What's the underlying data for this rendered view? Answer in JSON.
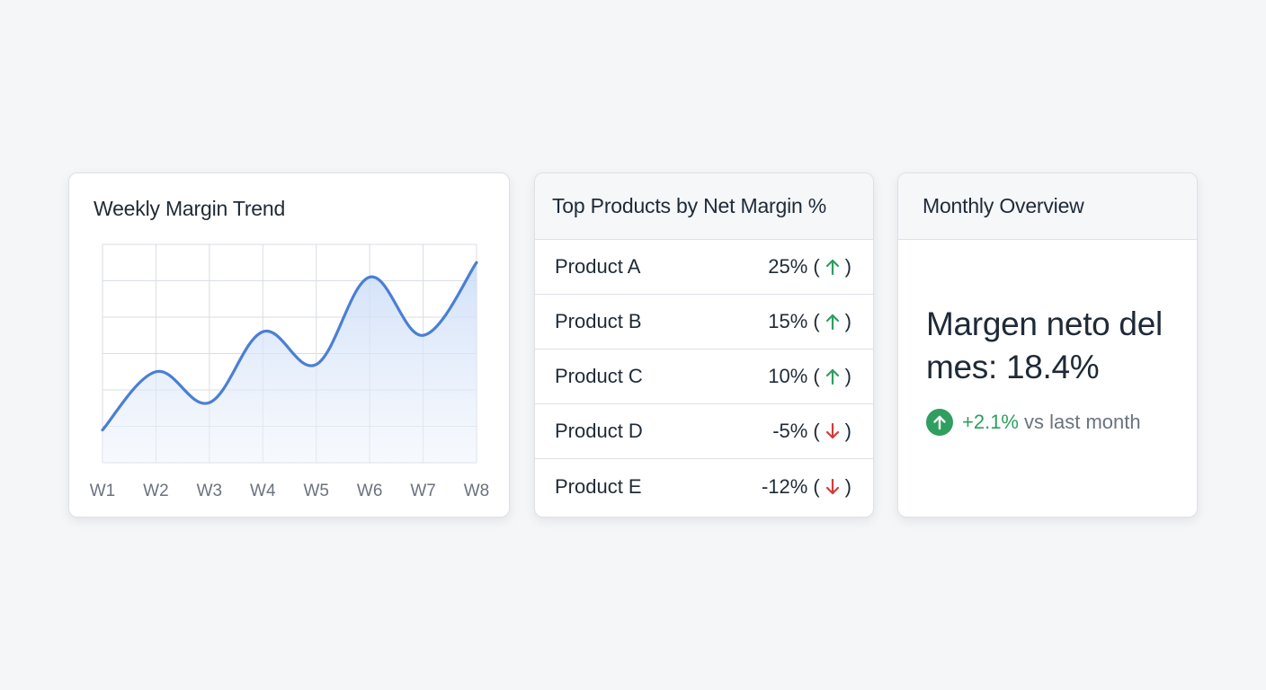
{
  "colors": {
    "line": "#4a7fd4",
    "area": "#dbe7fa",
    "grid": "#d9dde3",
    "up": "#2f9e5f",
    "down": "#d23b3b"
  },
  "trend_card": {
    "title": "Weekly Margin Trend"
  },
  "chart_data": {
    "type": "line",
    "title": "Weekly Margin Trend",
    "categories": [
      "W1",
      "W2",
      "W3",
      "W4",
      "W5",
      "W6",
      "W7",
      "W8"
    ],
    "series": [
      {
        "values": [
          0.9,
          2.5,
          1.65,
          3.6,
          2.7,
          5.1,
          3.5,
          5.5
        ]
      }
    ],
    "ylim": [
      0,
      6
    ],
    "grid": true,
    "area_fill": true
  },
  "products_card": {
    "title": "Top Products by Net Margin %",
    "rows": [
      {
        "name": "Product A",
        "value": "25%",
        "trend": "up",
        "icon": "arrow-up-icon"
      },
      {
        "name": "Product B",
        "value": "15%",
        "trend": "up",
        "icon": "arrow-up-icon"
      },
      {
        "name": "Product C",
        "value": "10%",
        "trend": "up",
        "icon": "arrow-up-icon"
      },
      {
        "name": "Product D",
        "value": "-5%",
        "trend": "down",
        "icon": "arrow-down-icon"
      },
      {
        "name": "Product E",
        "value": "-12%",
        "trend": "down",
        "icon": "arrow-down-icon"
      }
    ],
    "paren_open": "(",
    "paren_close": ")"
  },
  "overview_card": {
    "title": "Monthly Overview",
    "headline": "Margen neto del mes: 18.4%",
    "change_value": "+2.1%",
    "change_label": "vs last month",
    "icon": "arrow-up-circle-icon"
  }
}
